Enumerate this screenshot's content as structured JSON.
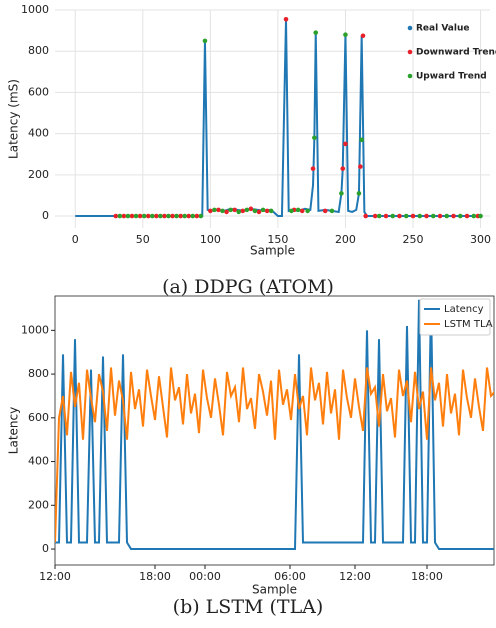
{
  "chart_data": [
    {
      "type": "line",
      "caption": "(a) DDPG (ATOM)",
      "x_label": "Sample",
      "y_label": "Latency (mS)",
      "xlim": [
        -15,
        307
      ],
      "ylim": [
        -58,
        1000
      ],
      "xticks": [
        0,
        50,
        100,
        150,
        200,
        250,
        300
      ],
      "yticks": [
        0,
        200,
        400,
        600,
        800,
        1000
      ],
      "grid": true,
      "frame": false,
      "legend": "upper right",
      "series": [
        {
          "name": "Real Value",
          "color": "#1f77b4",
          "mode": "line",
          "x": [
            0,
            30,
            94,
            96,
            98,
            100,
            105,
            110,
            115,
            120,
            125,
            130,
            135,
            140,
            145,
            150,
            153,
            156,
            158,
            160,
            165,
            170,
            174,
            176,
            177,
            178,
            180,
            185,
            190,
            195,
            197,
            198,
            200,
            202,
            205,
            208,
            210,
            212,
            214,
            216,
            300
          ],
          "values": [
            0,
            0,
            0,
            850,
            30,
            25,
            30,
            25,
            35,
            30,
            25,
            35,
            30,
            25,
            30,
            0,
            0,
            955,
            25,
            30,
            25,
            35,
            30,
            150,
            380,
            890,
            25,
            30,
            25,
            20,
            110,
            230,
            880,
            25,
            20,
            30,
            110,
            875,
            20,
            0,
            0
          ]
        },
        {
          "name": "Downward Trend",
          "color": "#e8202a",
          "mode": "markers",
          "x": [
            30,
            36,
            42,
            48,
            54,
            60,
            66,
            72,
            78,
            84,
            90,
            100,
            106,
            112,
            118,
            124,
            130,
            136,
            142,
            156,
            162,
            168,
            176,
            185,
            198,
            200,
            211,
            213,
            215,
            222,
            230,
            240,
            250,
            260,
            270,
            280,
            290,
            298
          ],
          "values": [
            0,
            0,
            0,
            0,
            0,
            0,
            0,
            0,
            0,
            0,
            0,
            25,
            30,
            20,
            30,
            25,
            35,
            20,
            25,
            955,
            30,
            25,
            230,
            25,
            230,
            350,
            240,
            875,
            0,
            0,
            0,
            0,
            0,
            0,
            0,
            0,
            0,
            0
          ]
        },
        {
          "name": "Upward Trend",
          "color": "#2ca02c",
          "mode": "markers",
          "x": [
            33,
            39,
            45,
            51,
            57,
            63,
            69,
            75,
            81,
            87,
            93,
            96,
            103,
            109,
            115,
            121,
            127,
            133,
            139,
            145,
            160,
            165,
            172,
            177,
            178,
            190,
            197,
            200,
            210,
            212,
            225,
            235,
            245,
            255,
            265,
            275,
            285,
            295,
            300
          ],
          "values": [
            0,
            0,
            0,
            0,
            0,
            0,
            0,
            0,
            0,
            0,
            0,
            850,
            30,
            25,
            30,
            20,
            30,
            25,
            30,
            25,
            25,
            30,
            25,
            380,
            890,
            25,
            110,
            880,
            110,
            370,
            0,
            0,
            0,
            0,
            0,
            0,
            0,
            0,
            0
          ]
        }
      ]
    },
    {
      "type": "line",
      "caption": "(b) LSTM (TLA)",
      "x_label": "Sample",
      "y_label": "Latency",
      "xlim": [
        0,
        439
      ],
      "ylim": [
        -73,
        1157
      ],
      "xticks": [
        {
          "value": 0,
          "label": "12:00"
        },
        {
          "value": 100,
          "label": "18:00"
        },
        {
          "value": 150,
          "label": "00:00"
        },
        {
          "value": 235,
          "label": "06:00"
        },
        {
          "value": 300,
          "label": "12:00"
        },
        {
          "value": 372,
          "label": "18:00"
        }
      ],
      "yticks": [
        0,
        200,
        400,
        600,
        800,
        1000
      ],
      "grid": false,
      "frame": true,
      "legend": "upper right",
      "x": [
        0,
        4,
        8,
        12,
        16,
        20,
        24,
        28,
        32,
        36,
        40,
        44,
        48,
        52,
        56,
        60,
        64,
        68,
        72,
        76,
        80,
        84,
        88,
        92,
        96,
        100,
        104,
        108,
        112,
        116,
        120,
        124,
        128,
        132,
        136,
        140,
        144,
        148,
        152,
        156,
        160,
        164,
        168,
        172,
        176,
        180,
        184,
        188,
        192,
        196,
        200,
        204,
        208,
        212,
        216,
        220,
        224,
        228,
        232,
        236,
        240,
        244,
        248,
        252,
        256,
        260,
        264,
        268,
        272,
        276,
        280,
        284,
        288,
        292,
        296,
        300,
        304,
        308,
        312,
        316,
        320,
        324,
        328,
        332,
        336,
        340,
        344,
        348,
        352,
        356,
        360,
        364,
        368,
        372,
        376,
        380,
        384,
        388,
        392,
        396,
        400,
        404,
        408,
        412,
        416,
        420,
        424,
        428,
        432,
        436,
        440
      ],
      "series": [
        {
          "name": "Latency",
          "color": "#1f77b4",
          "mode": "line",
          "values": [
            30,
            30,
            890,
            30,
            30,
            960,
            30,
            30,
            30,
            820,
            30,
            30,
            880,
            30,
            30,
            30,
            30,
            890,
            30,
            0,
            0,
            0,
            0,
            0,
            0,
            0,
            0,
            0,
            0,
            0,
            0,
            0,
            0,
            0,
            0,
            0,
            0,
            0,
            0,
            0,
            0,
            0,
            0,
            0,
            0,
            0,
            0,
            0,
            0,
            0,
            0,
            0,
            0,
            0,
            0,
            0,
            0,
            0,
            0,
            0,
            0,
            890,
            30,
            30,
            30,
            30,
            30,
            30,
            30,
            30,
            30,
            30,
            30,
            30,
            30,
            30,
            30,
            30,
            1000,
            30,
            30,
            960,
            30,
            30,
            30,
            30,
            30,
            30,
            1020,
            30,
            30,
            1140,
            30,
            30,
            1130,
            30,
            0,
            0,
            0,
            0,
            0,
            0,
            0,
            0,
            0,
            0,
            0,
            0,
            0,
            0,
            0
          ]
        },
        {
          "name": "LSTM TLA",
          "color": "#ff7f0e",
          "mode": "line",
          "values": [
            30,
            600,
            700,
            520,
            810,
            650,
            760,
            500,
            820,
            690,
            580,
            800,
            720,
            540,
            830,
            610,
            770,
            680,
            500,
            810,
            640,
            730,
            560,
            820,
            700,
            590,
            790,
            650,
            510,
            830,
            680,
            740,
            570,
            800,
            620,
            710,
            530,
            820,
            690,
            600,
            780,
            660,
            520,
            810,
            700,
            740,
            580,
            830,
            640,
            690,
            550,
            800,
            720,
            610,
            770,
            500,
            820,
            660,
            730,
            590,
            800,
            640,
            700,
            520,
            830,
            680,
            760,
            570,
            810,
            620,
            730,
            500,
            820,
            690,
            600,
            780,
            650,
            540,
            830,
            710,
            740,
            560,
            800,
            630,
            690,
            510,
            820,
            700,
            770,
            580,
            810,
            640,
            720,
            500,
            830,
            680,
            760,
            560,
            800,
            620,
            710,
            520,
            820,
            690,
            600,
            780,
            650,
            540,
            830,
            700,
            720
          ]
        }
      ]
    }
  ]
}
